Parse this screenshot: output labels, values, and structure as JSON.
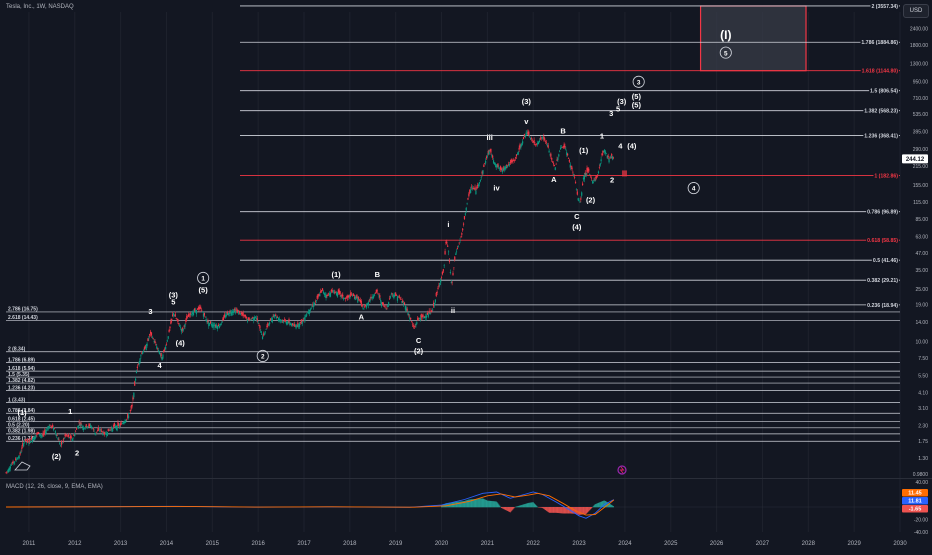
{
  "header": {
    "symbol_line": "Tesla, Inc., 1W, NASDAQ",
    "currency_button": "USD"
  },
  "macd_header": "MACD (12, 26, close, 9, EMA, EMA)",
  "colors": {
    "background": "#131722",
    "grid": "#1e222d",
    "white_line": "#d1d4dc",
    "red_line": "#f23645",
    "candle_up": "#089981",
    "candle_down": "#f23645",
    "macd_line": "#2962ff",
    "signal_line": "#ff6d00",
    "hist_up": "#26a69a",
    "hist_down": "#ef5350",
    "box_fill": "#363a45",
    "box_border": "#f23645",
    "price_badge": "#ffffff",
    "purple_icon": "#9c27b0",
    "zero_badge": "#e91e63"
  },
  "chart_data": {
    "type": "line",
    "title": "Tesla, Inc., 1W, NASDAQ",
    "xlabel": "",
    "ylabel": "",
    "y_scale": "log",
    "ylim": [
      0.98,
      3200
    ],
    "xlim": [
      2010.5,
      2030.0
    ],
    "x_ticks": [
      "2011",
      "2012",
      "2013",
      "2014",
      "2015",
      "2016",
      "2017",
      "2018",
      "2019",
      "2020",
      "2021",
      "2022",
      "2023",
      "2024",
      "2025",
      "2026",
      "2027",
      "2028",
      "2029",
      "2030"
    ],
    "y_ticks": [
      "3200.00",
      "2400.00",
      "1800.00",
      "1300.00",
      "950.00",
      "710.00",
      "535.00",
      "395.00",
      "290.00",
      "215.00",
      "155.00",
      "115.00",
      "85.00",
      "63.00",
      "47.00",
      "35.00",
      "25.00",
      "19.00",
      "14.00",
      "10.00",
      "7.50",
      "5.50",
      "4.10",
      "3.10",
      "2.30",
      "1.75",
      "1.30",
      "0.9800"
    ],
    "last_price_label": "244.12",
    "price_path": [
      [
        2010.5,
        1.0
      ],
      [
        2010.62,
        1.15
      ],
      [
        2010.8,
        1.35
      ],
      [
        2010.9,
        1.75
      ],
      [
        2011.0,
        1.7
      ],
      [
        2011.2,
        2.0
      ],
      [
        2011.3,
        1.9
      ],
      [
        2011.45,
        2.3
      ],
      [
        2011.55,
        2.2
      ],
      [
        2011.7,
        1.6
      ],
      [
        2011.8,
        1.95
      ],
      [
        2011.95,
        1.8
      ],
      [
        2012.1,
        2.4
      ],
      [
        2012.2,
        2.2
      ],
      [
        2012.35,
        2.3
      ],
      [
        2012.45,
        2.0
      ],
      [
        2012.55,
        2.15
      ],
      [
        2012.65,
        1.95
      ],
      [
        2012.75,
        2.1
      ],
      [
        2012.85,
        2.25
      ],
      [
        2013.0,
        2.3
      ],
      [
        2013.15,
        2.6
      ],
      [
        2013.25,
        3.2
      ],
      [
        2013.35,
        6.0
      ],
      [
        2013.45,
        8.0
      ],
      [
        2013.55,
        9.0
      ],
      [
        2013.65,
        11.5
      ],
      [
        2013.8,
        9.0
      ],
      [
        2013.9,
        7.5
      ],
      [
        2014.0,
        9.5
      ],
      [
        2014.15,
        16.5
      ],
      [
        2014.25,
        14.0
      ],
      [
        2014.35,
        12.0
      ],
      [
        2014.45,
        15.0
      ],
      [
        2014.6,
        17.0
      ],
      [
        2014.75,
        17.8
      ],
      [
        2014.9,
        14.0
      ],
      [
        2015.0,
        13.5
      ],
      [
        2015.15,
        13.0
      ],
      [
        2015.3,
        16.0
      ],
      [
        2015.5,
        17.5
      ],
      [
        2015.65,
        16.0
      ],
      [
        2015.8,
        14.5
      ],
      [
        2015.95,
        15.5
      ],
      [
        2016.1,
        10.8
      ],
      [
        2016.2,
        13.0
      ],
      [
        2016.35,
        16.0
      ],
      [
        2016.5,
        14.5
      ],
      [
        2016.65,
        14.0
      ],
      [
        2016.8,
        13.0
      ],
      [
        2016.95,
        14.0
      ],
      [
        2017.1,
        17.0
      ],
      [
        2017.25,
        20.0
      ],
      [
        2017.4,
        24.5
      ],
      [
        2017.5,
        22.0
      ],
      [
        2017.6,
        24.0
      ],
      [
        2017.75,
        23.5
      ],
      [
        2017.9,
        21.0
      ],
      [
        2018.05,
        22.5
      ],
      [
        2018.2,
        21.0
      ],
      [
        2018.3,
        17.5
      ],
      [
        2018.45,
        21.0
      ],
      [
        2018.6,
        24.0
      ],
      [
        2018.7,
        19.5
      ],
      [
        2018.8,
        17.5
      ],
      [
        2018.9,
        23.0
      ],
      [
        2019.05,
        22.0
      ],
      [
        2019.2,
        19.0
      ],
      [
        2019.35,
        14.0
      ],
      [
        2019.4,
        12.5
      ],
      [
        2019.5,
        15.0
      ],
      [
        2019.65,
        15.5
      ],
      [
        2019.8,
        17.0
      ],
      [
        2019.95,
        27.0
      ],
      [
        2020.05,
        35.0
      ],
      [
        2020.1,
        58.0
      ],
      [
        2020.15,
        50.0
      ],
      [
        2020.22,
        26.0
      ],
      [
        2020.3,
        45.0
      ],
      [
        2020.45,
        66.0
      ],
      [
        2020.55,
        110.0
      ],
      [
        2020.65,
        150.0
      ],
      [
        2020.75,
        140.0
      ],
      [
        2020.85,
        170.0
      ],
      [
        2020.95,
        230.0
      ],
      [
        2021.05,
        290.0
      ],
      [
        2021.15,
        230.0
      ],
      [
        2021.3,
        200.0
      ],
      [
        2021.45,
        220.0
      ],
      [
        2021.6,
        240.0
      ],
      [
        2021.75,
        320.0
      ],
      [
        2021.85,
        390.0
      ],
      [
        2021.95,
        350.0
      ],
      [
        2022.05,
        310.0
      ],
      [
        2022.2,
        360.0
      ],
      [
        2022.3,
        320.0
      ],
      [
        2022.42,
        230.0
      ],
      [
        2022.48,
        210.0
      ],
      [
        2022.6,
        300.0
      ],
      [
        2022.7,
        300.0
      ],
      [
        2022.8,
        225.0
      ],
      [
        2022.9,
        180.0
      ],
      [
        2022.97,
        125.0
      ],
      [
        2023.03,
        113.0
      ],
      [
        2023.1,
        180.0
      ],
      [
        2023.2,
        200.0
      ],
      [
        2023.3,
        163.0
      ],
      [
        2023.4,
        180.0
      ],
      [
        2023.5,
        260.0
      ],
      [
        2023.55,
        290.0
      ],
      [
        2023.65,
        245.0
      ],
      [
        2023.72,
        260.0
      ],
      [
        2023.76,
        244.12
      ]
    ],
    "fib_levels": [
      {
        "label": "2 (3557.34)",
        "value": 3557.34,
        "color": "white"
      },
      {
        "label": "1.786 (1884.86)",
        "value": 1884.86,
        "color": "white"
      },
      {
        "label": "1.618 (1144.80)",
        "value": 1144.8,
        "color": "red"
      },
      {
        "label": "1.5 (806.54)",
        "value": 806.54,
        "color": "white"
      },
      {
        "label": "1.382 (568.23)",
        "value": 568.23,
        "color": "white"
      },
      {
        "label": "1.236 (368.41)",
        "value": 368.41,
        "color": "white"
      },
      {
        "label": "1 (182.86)",
        "value": 182.86,
        "color": "red"
      },
      {
        "label": "0.786 (96.89)",
        "value": 96.89,
        "color": "white"
      },
      {
        "label": "0.618 (58.85)",
        "value": 58.85,
        "color": "red"
      },
      {
        "label": "0.5 (41.46)",
        "value": 41.46,
        "color": "white"
      },
      {
        "label": "0.382 (29.21)",
        "value": 29.21,
        "color": "white"
      },
      {
        "label": "0.236 (18.94)",
        "value": 18.94,
        "color": "white"
      }
    ],
    "left_fib_levels": [
      {
        "label": "2.786 (16.75)",
        "value": 16.75
      },
      {
        "label": "2.618 (14.43)",
        "value": 14.43
      },
      {
        "label": "2 (8.34)",
        "value": 8.34
      },
      {
        "label": "1.786 (6.89)",
        "value": 6.89
      },
      {
        "label": "1.618 (5.94)",
        "value": 5.94
      },
      {
        "label": "1.5 (5.35)",
        "value": 5.35
      },
      {
        "label": "1.382 (4.82)",
        "value": 4.82
      },
      {
        "label": "1.236 (4.23)",
        "value": 4.23
      },
      {
        "label": "1 (3.43)",
        "value": 3.43
      },
      {
        "label": "0.786 (2.84)",
        "value": 2.84
      },
      {
        "label": "0.618 (2.45)",
        "value": 2.45
      },
      {
        "label": "0.5 (2.20)",
        "value": 2.2
      },
      {
        "label": "0.382 (1.98)",
        "value": 1.98
      },
      {
        "label": "0.236 (1.74)",
        "value": 1.74
      }
    ],
    "wave_labels": [
      {
        "text": "(1)",
        "x": 2010.85,
        "y": 2.75,
        "circle": false,
        "size": "m"
      },
      {
        "text": "(2)",
        "x": 2011.6,
        "y": 1.28,
        "circle": false,
        "size": "m"
      },
      {
        "text": "1",
        "x": 2011.9,
        "y": 2.8,
        "circle": false,
        "size": "m"
      },
      {
        "text": "2",
        "x": 2012.05,
        "y": 1.36,
        "circle": false,
        "size": "m"
      },
      {
        "text": "3",
        "x": 2013.65,
        "y": 16.2,
        "circle": false,
        "size": "m"
      },
      {
        "text": "4",
        "x": 2013.85,
        "y": 6.3,
        "circle": false,
        "size": "m"
      },
      {
        "text": "(3)",
        "x": 2014.15,
        "y": 21.5,
        "circle": false,
        "size": "m"
      },
      {
        "text": "5",
        "x": 2014.15,
        "y": 19.0,
        "circle": false,
        "size": "m"
      },
      {
        "text": "(4)",
        "x": 2014.3,
        "y": 9.3,
        "circle": false,
        "size": "m"
      },
      {
        "text": "(5)",
        "x": 2014.8,
        "y": 23.5,
        "circle": false,
        "size": "m"
      },
      {
        "text": "1",
        "x": 2014.8,
        "y": 29.0,
        "circle": true,
        "size": "m"
      },
      {
        "text": "2",
        "x": 2016.1,
        "y": 7.4,
        "circle": true,
        "size": "m"
      },
      {
        "text": "(1)",
        "x": 2017.7,
        "y": 31.0,
        "circle": false,
        "size": "m"
      },
      {
        "text": "B",
        "x": 2018.6,
        "y": 31.0,
        "circle": false,
        "size": "m"
      },
      {
        "text": "A",
        "x": 2018.25,
        "y": 14.7,
        "circle": false,
        "size": "m"
      },
      {
        "text": "C",
        "x": 2019.5,
        "y": 9.7,
        "circle": false,
        "size": "m"
      },
      {
        "text": "(2)",
        "x": 2019.5,
        "y": 8.1,
        "circle": false,
        "size": "m"
      },
      {
        "text": "i",
        "x": 2020.15,
        "y": 74.0,
        "circle": false,
        "size": "m"
      },
      {
        "text": "ii",
        "x": 2020.25,
        "y": 16.5,
        "circle": false,
        "size": "m"
      },
      {
        "text": "iii",
        "x": 2021.05,
        "y": 340.0,
        "circle": false,
        "size": "m"
      },
      {
        "text": "iv",
        "x": 2021.2,
        "y": 140.0,
        "circle": false,
        "size": "m"
      },
      {
        "text": "v",
        "x": 2021.85,
        "y": 450.0,
        "circle": false,
        "size": "m"
      },
      {
        "text": "(3)",
        "x": 2021.85,
        "y": 640.0,
        "circle": false,
        "size": "m"
      },
      {
        "text": "B",
        "x": 2022.65,
        "y": 380.0,
        "circle": false,
        "size": "m"
      },
      {
        "text": "A",
        "x": 2022.45,
        "y": 163.0,
        "circle": false,
        "size": "m"
      },
      {
        "text": "(1)",
        "x": 2023.1,
        "y": 272.0,
        "circle": false,
        "size": "m"
      },
      {
        "text": "C",
        "x": 2022.95,
        "y": 85.0,
        "circle": false,
        "size": "m"
      },
      {
        "text": "(4)",
        "x": 2022.95,
        "y": 71.0,
        "circle": false,
        "size": "m"
      },
      {
        "text": "(2)",
        "x": 2023.25,
        "y": 114.0,
        "circle": false,
        "size": "m"
      },
      {
        "text": "1",
        "x": 2023.5,
        "y": 348.0,
        "circle": false,
        "size": "m"
      },
      {
        "text": "4",
        "x": 2023.9,
        "y": 292.0,
        "circle": false,
        "size": "m"
      },
      {
        "text": "(4)",
        "x": 2024.15,
        "y": 292.0,
        "circle": false,
        "size": "m"
      },
      {
        "text": "2",
        "x": 2023.72,
        "y": 161.0,
        "circle": false,
        "size": "m"
      },
      {
        "text": "3",
        "x": 2023.7,
        "y": 520.0,
        "circle": false,
        "size": "m"
      },
      {
        "text": "5",
        "x": 2023.85,
        "y": 560.0,
        "circle": false,
        "size": "m"
      },
      {
        "text": "(3)",
        "x": 2023.93,
        "y": 640.0,
        "circle": false,
        "size": "m"
      },
      {
        "text": "(5)",
        "x": 2024.25,
        "y": 700.0,
        "circle": false,
        "size": "m"
      },
      {
        "text": "(5)",
        "x": 2024.25,
        "y": 600.0,
        "circle": false,
        "size": "m"
      },
      {
        "text": "3",
        "x": 2024.3,
        "y": 900.0,
        "circle": true,
        "size": "m"
      },
      {
        "text": "4",
        "x": 2025.5,
        "y": 140.0,
        "circle": true,
        "size": "m"
      },
      {
        "text": "(I)",
        "x": 2026.2,
        "y": 2000.0,
        "circle": false,
        "size": "l"
      },
      {
        "text": "5",
        "x": 2026.2,
        "y": 1500.0,
        "circle": true,
        "size": "m"
      }
    ],
    "target_box": {
      "x0": 2025.65,
      "x1": 2027.95,
      "y0": 1144.8,
      "y1": 3557.34
    },
    "macd": {
      "axis_labels": [
        "40.00",
        "20.00",
        "-20.00",
        "-40.00"
      ],
      "value_badges": [
        {
          "text": "11.45",
          "color": "orange"
        },
        {
          "text": "11.81",
          "color": "blue"
        },
        {
          "text": "-1.65",
          "color": "red"
        }
      ],
      "macd_line": [
        [
          2010.5,
          0
        ],
        [
          2013.5,
          0.8
        ],
        [
          2014.2,
          1.2
        ],
        [
          2016.0,
          -0.3
        ],
        [
          2017.5,
          0.4
        ],
        [
          2019.3,
          -0.5
        ],
        [
          2020.0,
          3
        ],
        [
          2020.5,
          12
        ],
        [
          2020.9,
          22
        ],
        [
          2021.2,
          24
        ],
        [
          2021.5,
          14
        ],
        [
          2021.8,
          20
        ],
        [
          2022.0,
          24
        ],
        [
          2022.2,
          20
        ],
        [
          2022.5,
          8
        ],
        [
          2022.8,
          -5
        ],
        [
          2023.0,
          -14
        ],
        [
          2023.15,
          -18
        ],
        [
          2023.35,
          -10
        ],
        [
          2023.55,
          4
        ],
        [
          2023.76,
          11.8
        ]
      ],
      "signal_line": [
        [
          2010.5,
          0
        ],
        [
          2013.5,
          0.6
        ],
        [
          2014.3,
          1.0
        ],
        [
          2016.1,
          -0.2
        ],
        [
          2017.6,
          0.3
        ],
        [
          2019.4,
          -0.3
        ],
        [
          2020.1,
          2
        ],
        [
          2020.6,
          9
        ],
        [
          2021.0,
          18
        ],
        [
          2021.3,
          21
        ],
        [
          2021.6,
          16
        ],
        [
          2021.9,
          19
        ],
        [
          2022.1,
          22
        ],
        [
          2022.35,
          18
        ],
        [
          2022.65,
          6
        ],
        [
          2022.95,
          -7
        ],
        [
          2023.15,
          -13
        ],
        [
          2023.35,
          -12
        ],
        [
          2023.6,
          2
        ],
        [
          2023.76,
          11.4
        ]
      ],
      "histogram_range": [
        2020.0,
        2023.76
      ]
    }
  }
}
